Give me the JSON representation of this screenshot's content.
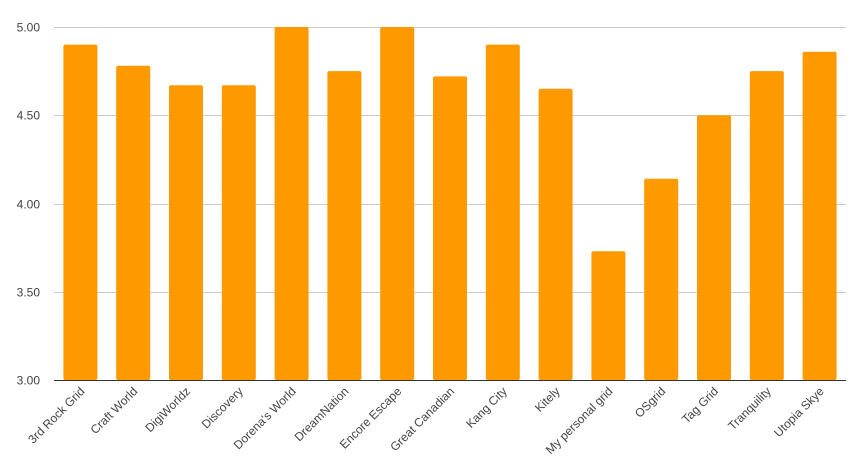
{
  "chart_data": {
    "type": "bar",
    "title": "",
    "xlabel": "",
    "ylabel": "",
    "categories": [
      "3rd Rock Grid",
      "Craft World",
      "DigiWorldz",
      "Discovery",
      "Dorena's World",
      "DreamNation",
      "Encore Escape",
      "Great Canadian",
      "Kang City",
      "Kitely",
      "My personal grid",
      "OSgrid",
      "Tag Grid",
      "Tranquility",
      "Utopia Skye"
    ],
    "values": [
      4.9,
      4.78,
      4.67,
      4.67,
      5.0,
      4.75,
      5.0,
      4.72,
      4.9,
      4.65,
      3.73,
      4.14,
      4.5,
      4.75,
      4.86
    ],
    "ylim": [
      3.0,
      5.0
    ],
    "yticks": [
      "3.00",
      "3.50",
      "4.00",
      "4.50",
      "5.00"
    ],
    "ytick_values": [
      3.0,
      3.5,
      4.0,
      4.5,
      5.0
    ],
    "grid": true,
    "bar_color": "#ff9900",
    "grid_color": "#cccccc"
  }
}
